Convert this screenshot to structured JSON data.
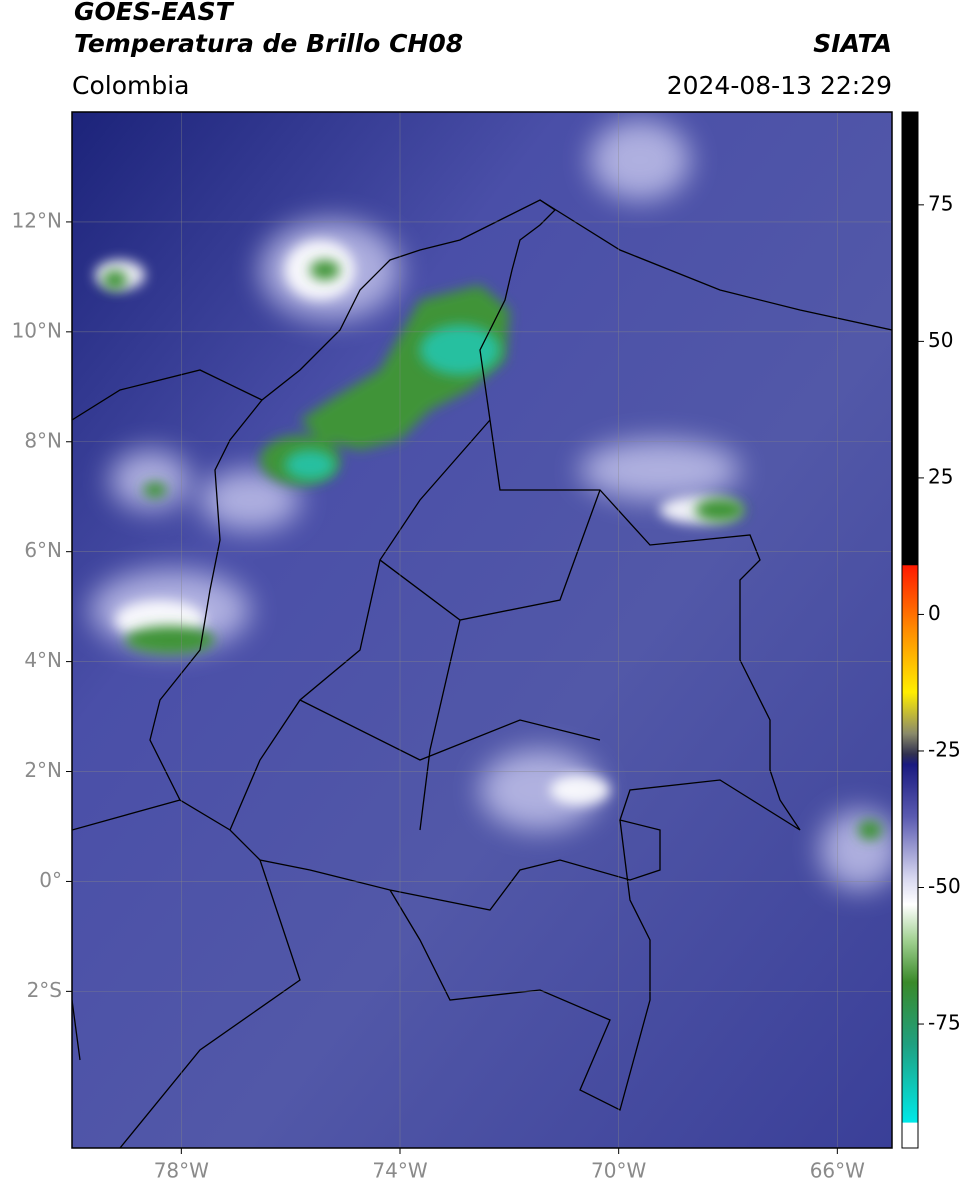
{
  "header": {
    "satellite": "GOES-EAST",
    "product": "Temperatura de Brillo CH08",
    "source": "SIATA",
    "region": "Colombia",
    "datetime": "2024-08-13 22:29"
  },
  "map": {
    "lonlim": [
      -80,
      -65
    ],
    "latlim": [
      -4.85,
      14
    ],
    "lon_ticks": [
      {
        "value": -78,
        "label": "78°W"
      },
      {
        "value": -74,
        "label": "74°W"
      },
      {
        "value": -70,
        "label": "70°W"
      },
      {
        "value": -66,
        "label": "66°W"
      }
    ],
    "lat_ticks": [
      {
        "value": 12,
        "label": "12°N"
      },
      {
        "value": 10,
        "label": "10°N"
      },
      {
        "value": 8,
        "label": "8°N"
      },
      {
        "value": 6,
        "label": "6°N"
      },
      {
        "value": 4,
        "label": "4°N"
      },
      {
        "value": 2,
        "label": "2°N"
      },
      {
        "value": 0,
        "label": "0°"
      },
      {
        "value": -2,
        "label": "2°S"
      }
    ]
  },
  "colorbar": {
    "lim": [
      -97.7,
      92
    ],
    "ticks": [
      75,
      50,
      25,
      0,
      -25,
      -50,
      -75
    ]
  }
}
